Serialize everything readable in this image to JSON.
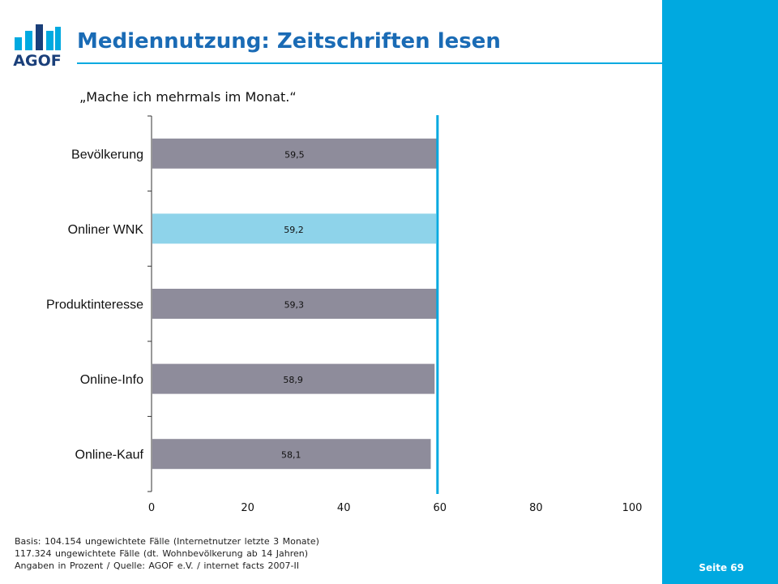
{
  "logo": {
    "text": "AGOF"
  },
  "title": "Mediennutzung: Zeitschriften lesen",
  "subtitle": "„Mache ich mehrmals im Monat.“",
  "chart_data": {
    "type": "bar",
    "orientation": "horizontal",
    "categories": [
      "Bevölkerung",
      "Onliner WNK",
      "Produktinteresse",
      "Online-Info",
      "Online-Kauf"
    ],
    "values": [
      59.5,
      59.2,
      59.3,
      58.9,
      58.1
    ],
    "value_labels": [
      "59,5",
      "59,2",
      "59,3",
      "58,9",
      "58,1"
    ],
    "highlight_index": 1,
    "xlim": [
      0,
      100
    ],
    "xticks": [
      0,
      20,
      40,
      60,
      80,
      100
    ],
    "reference_value": 59.5,
    "colors": {
      "bar": "#8e8c9b",
      "highlight": "#8ed3ea",
      "reference_line": "#00a9e0",
      "axis": "#333333"
    },
    "grid": false,
    "legend": "none"
  },
  "footnote": {
    "lines": [
      "Basis: 104.154 ungewichtete Fälle (Internetnutzer letzte 3 Monate)",
      "117.324 ungewichtete Fälle (dt. Wohnbevölkerung ab 14 Jahren)",
      "Angaben in Prozent / Quelle: AGOF e.V. / internet facts 2007-II"
    ]
  },
  "page": {
    "label": "Seite 69"
  }
}
